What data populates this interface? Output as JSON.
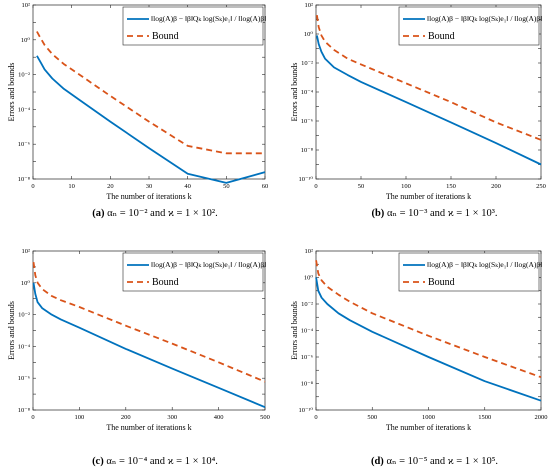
{
  "chart_data": [
    {
      "type": "line",
      "ylabel": "Errors and bounds",
      "xlabel": "The number of iterations k",
      "yscale": "log",
      "xlim": [
        0,
        60
      ],
      "ylim": [
        1e-08,
        100
      ],
      "xticks": [
        "0",
        "10",
        "20",
        "30",
        "40",
        "50",
        "60"
      ],
      "yticks": [
        "10⁻⁸",
        "10⁻⁶",
        "10⁻⁴",
        "10⁻²",
        "10⁰",
        "10²"
      ],
      "legend_position": "top-right",
      "legend_entries": [
        "‖log(A)β − ‖β‖Qₖ log(Sₖ)e₁‖ / ‖log(A)β‖",
        "Bound"
      ],
      "series": [
        {
          "name": "error",
          "color": "#0072BD",
          "style": "solid",
          "x": [
            1,
            2,
            3,
            5,
            8,
            12,
            20,
            30,
            40,
            50,
            60
          ],
          "y": [
            0.12,
            0.05,
            0.02,
            0.006,
            0.0015,
            0.00035,
            2e-05,
            6e-07,
            2e-08,
            6e-09,
            2.5e-08
          ]
        },
        {
          "name": "Bound",
          "color": "#D95319",
          "style": "dashed",
          "x": [
            1,
            2,
            3,
            5,
            8,
            12,
            20,
            30,
            40,
            50,
            60
          ],
          "y": [
            3,
            1.2,
            0.5,
            0.15,
            0.04,
            0.01,
            0.0006,
            2e-05,
            8e-07,
            3e-07,
            3e-07
          ]
        }
      ],
      "caption": {
        "tag": "(a)",
        "text": "αₙ = 10⁻² and ϰ = 1 × 10²."
      }
    },
    {
      "type": "line",
      "ylabel": "Errors and bounds",
      "xlabel": "The number of iterations k",
      "yscale": "log",
      "xlim": [
        0,
        250
      ],
      "ylim": [
        1e-10,
        100
      ],
      "xticks": [
        "0",
        "50",
        "100",
        "150",
        "200",
        "250"
      ],
      "yticks": [
        "10⁻¹⁰",
        "10⁻⁸",
        "10⁻⁶",
        "10⁻⁴",
        "10⁻²",
        "10⁰",
        "10²"
      ],
      "legend_position": "top-right",
      "legend_entries": [
        "‖log(A)β − ‖β‖Qₖ log(Sₖ)e₁‖ / ‖log(A)β‖",
        "Bound"
      ],
      "series": [
        {
          "name": "error",
          "color": "#0072BD",
          "style": "solid",
          "x": [
            1,
            3,
            6,
            10,
            20,
            35,
            50,
            100,
            150,
            200,
            250
          ],
          "y": [
            0.8,
            0.2,
            0.06,
            0.02,
            0.005,
            0.0015,
            0.0005,
            2e-05,
            8e-07,
            3e-08,
            1e-09
          ]
        },
        {
          "name": "Bound",
          "color": "#D95319",
          "style": "dashed",
          "x": [
            1,
            3,
            6,
            10,
            20,
            35,
            50,
            100,
            150,
            200,
            250
          ],
          "y": [
            20,
            3,
            0.8,
            0.3,
            0.08,
            0.02,
            0.008,
            0.0004,
            2e-05,
            8e-07,
            5e-08
          ]
        }
      ],
      "caption": {
        "tag": "(b)",
        "text": "αₙ = 10⁻³ and ϰ = 1 × 10³."
      }
    },
    {
      "type": "line",
      "ylabel": "Errors and bounds",
      "xlabel": "The number of iterations k",
      "yscale": "log",
      "xlim": [
        0,
        500
      ],
      "ylim": [
        1e-08,
        100
      ],
      "xticks": [
        "0",
        "100",
        "200",
        "300",
        "400",
        "500"
      ],
      "yticks": [
        "10⁻⁸",
        "10⁻⁶",
        "10⁻⁴",
        "10⁻²",
        "10⁰",
        "10²"
      ],
      "legend_position": "top-right",
      "legend_entries": [
        "‖log(A)β − ‖β‖Qₖ log(Sₖ)e₁‖ / ‖log(A)β‖",
        "Bound"
      ],
      "series": [
        {
          "name": "error",
          "color": "#0072BD",
          "style": "solid",
          "x": [
            1,
            5,
            10,
            20,
            40,
            60,
            100,
            200,
            300,
            400,
            500
          ],
          "y": [
            1,
            0.2,
            0.06,
            0.025,
            0.01,
            0.005,
            0.0015,
            7e-05,
            4e-06,
            2.5e-07,
            1.5e-08
          ]
        },
        {
          "name": "Bound",
          "color": "#D95319",
          "style": "dashed",
          "x": [
            1,
            5,
            10,
            20,
            40,
            60,
            100,
            200,
            300,
            400,
            500
          ],
          "y": [
            20,
            3,
            1,
            0.4,
            0.15,
            0.08,
            0.03,
            0.002,
            0.00015,
            1e-05,
            6e-07
          ]
        }
      ],
      "caption": {
        "tag": "(c)",
        "text": "αₙ = 10⁻⁴ and ϰ = 1 × 10⁴."
      }
    },
    {
      "type": "line",
      "ylabel": "Errors and bounds",
      "xlabel": "The number of iterations k",
      "yscale": "log",
      "xlim": [
        0,
        2000
      ],
      "ylim": [
        1e-10,
        100
      ],
      "xticks": [
        "0",
        "500",
        "1000",
        "1500",
        "2000"
      ],
      "yticks": [
        "10⁻¹⁰",
        "10⁻⁸",
        "10⁻⁶",
        "10⁻⁴",
        "10⁻²",
        "10⁰",
        "10²"
      ],
      "legend_position": "top-right",
      "legend_entries": [
        "‖log(A)β − ‖β‖Qₖ log(Sₖ)e₁‖ / ‖log(A)β‖",
        "Bound"
      ],
      "series": [
        {
          "name": "error",
          "color": "#0072BD",
          "style": "solid",
          "x": [
            1,
            20,
            50,
            100,
            200,
            300,
            500,
            1000,
            1500,
            2000
          ],
          "y": [
            1,
            0.1,
            0.03,
            0.01,
            0.002,
            0.0006,
            8e-05,
            1e-06,
            1.5e-08,
            5e-10
          ]
        },
        {
          "name": "Bound",
          "color": "#D95319",
          "style": "dashed",
          "x": [
            1,
            20,
            50,
            100,
            200,
            300,
            500,
            1000,
            1500,
            2000
          ],
          "y": [
            20,
            2,
            0.6,
            0.2,
            0.05,
            0.015,
            0.002,
            4e-05,
            1e-06,
            3e-08
          ]
        }
      ],
      "caption": {
        "tag": "(d)",
        "text": "αₙ = 10⁻⁵ and ϰ = 1 × 10⁵."
      }
    }
  ]
}
